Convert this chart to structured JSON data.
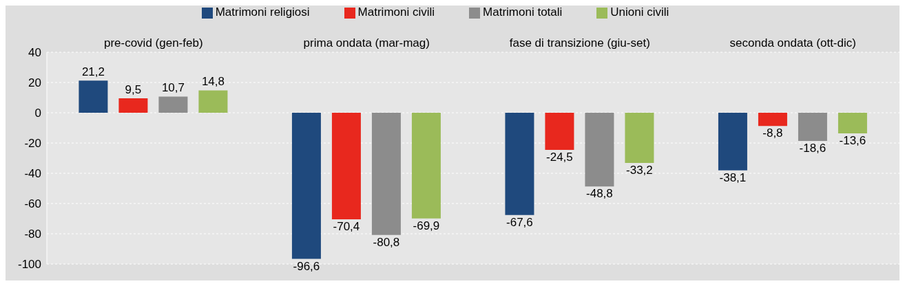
{
  "chart_data": {
    "type": "bar",
    "categories": [
      "pre-covid (gen-feb)",
      "prima ondata (mar-mag)",
      "fase di transizione (giu-set)",
      "seconda ondata (ott-dic)"
    ],
    "series": [
      {
        "name": "Matrimoni religiosi",
        "color": "#1f497d",
        "values": [
          21.2,
          -96.6,
          -67.6,
          -38.1
        ],
        "value_labels": [
          "21,2",
          "-96,6",
          "-67,6",
          "-38,1"
        ]
      },
      {
        "name": "Matrimoni civili",
        "color": "#e8281e",
        "values": [
          9.5,
          -70.4,
          -24.5,
          -8.8
        ],
        "value_labels": [
          "9,5",
          "-70,4",
          "-24,5",
          "-8,8"
        ]
      },
      {
        "name": "Matrimoni totali",
        "color": "#8c8c8c",
        "values": [
          10.7,
          -80.8,
          -48.8,
          -18.6
        ],
        "value_labels": [
          "10,7",
          "-80,8",
          "-48,8",
          "-18,6"
        ]
      },
      {
        "name": "Unioni civili",
        "color": "#9bbb59",
        "values": [
          14.8,
          -69.9,
          -33.2,
          -13.6
        ],
        "value_labels": [
          "14,8",
          "-69,9",
          "-33,2",
          "-13,6"
        ]
      }
    ],
    "ylim": [
      -100,
      40
    ],
    "yticks": [
      -100,
      -80,
      -60,
      -40,
      -20,
      0,
      20,
      40
    ],
    "grid": "y",
    "legend": "top"
  }
}
